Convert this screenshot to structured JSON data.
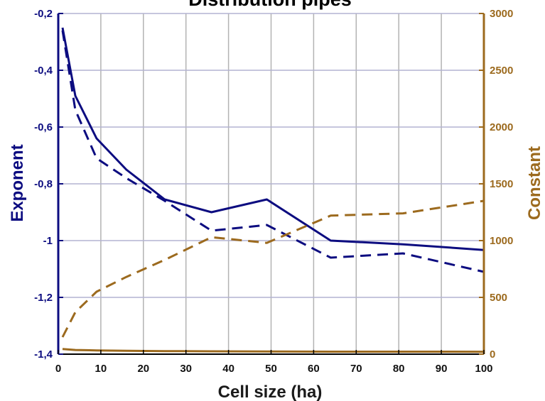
{
  "colors": {
    "left_axis": "#0c0c80",
    "right_axis": "#9c6a1e",
    "grid_vertical": "#b3b3b3",
    "grid_horizontal": "#b3b3d2",
    "axis_x": "#000000"
  },
  "chart_data": {
    "type": "line",
    "title": "Distribution pipes",
    "xlabel": "Cell size (ha)",
    "ylabel_left": "Exponent",
    "ylabel_right": "Constant",
    "xlim": [
      0,
      100
    ],
    "ylim_left": [
      -1.4,
      -0.2
    ],
    "ylim_right": [
      0,
      3000
    ],
    "x_ticks": [
      "0",
      "10",
      "20",
      "30",
      "40",
      "50",
      "60",
      "70",
      "80",
      "90",
      "100"
    ],
    "y_left_ticks": [
      "-0,2",
      "-0,4",
      "-0,6",
      "-0,8",
      "-1",
      "-1,2",
      "-1,4"
    ],
    "y_right_ticks": [
      "3000",
      "2500",
      "2000",
      "1500",
      "1000",
      "500",
      "0"
    ],
    "grid": true,
    "series": [
      {
        "axis": "left",
        "style": "solid",
        "color": "#0c0c80",
        "points": [
          [
            1,
            -0.25
          ],
          [
            4,
            -0.49
          ],
          [
            9,
            -0.64
          ],
          [
            16,
            -0.75
          ],
          [
            25,
            -0.855
          ],
          [
            36,
            -0.9
          ],
          [
            49,
            -0.855
          ],
          [
            64,
            -1.0
          ],
          [
            81,
            -1.013
          ],
          [
            100,
            -1.033
          ]
        ]
      },
      {
        "axis": "left",
        "style": "dashed",
        "color": "#0c0c80",
        "points": [
          [
            1,
            -0.26
          ],
          [
            4,
            -0.54
          ],
          [
            9,
            -0.71
          ],
          [
            16,
            -0.78
          ],
          [
            25,
            -0.86
          ],
          [
            36,
            -0.965
          ],
          [
            49,
            -0.945
          ],
          [
            64,
            -1.06
          ],
          [
            81,
            -1.045
          ],
          [
            100,
            -1.11
          ]
        ]
      },
      {
        "axis": "right",
        "style": "dashed",
        "color": "#9c6a1e",
        "points": [
          [
            1,
            150
          ],
          [
            4,
            370
          ],
          [
            9,
            550
          ],
          [
            16,
            680
          ],
          [
            25,
            830
          ],
          [
            36,
            1030
          ],
          [
            49,
            980
          ],
          [
            64,
            1220
          ],
          [
            81,
            1240
          ],
          [
            100,
            1350
          ]
        ]
      },
      {
        "axis": "right",
        "style": "solid",
        "color": "#9c6a1e",
        "points": [
          [
            1,
            45
          ],
          [
            4,
            37
          ],
          [
            9,
            33
          ],
          [
            16,
            30
          ],
          [
            25,
            27
          ],
          [
            36,
            25
          ],
          [
            49,
            24
          ],
          [
            64,
            22
          ],
          [
            81,
            22
          ],
          [
            100,
            21
          ]
        ]
      }
    ]
  }
}
